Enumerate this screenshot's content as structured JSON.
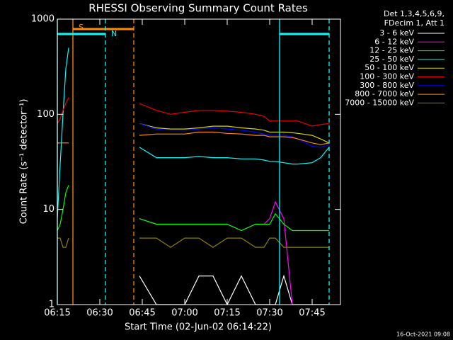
{
  "chart_data": {
    "type": "line",
    "title": "RHESSI Observing Summary Count Rates",
    "legend_header": [
      "Det 1,3,4,5,6,9,",
      "FDecim 1, Att 1"
    ],
    "xlabel": "Start Time (02-Jun-02 06:14:22)",
    "ylabel": "Count Rate (s⁻¹ detector⁻¹)",
    "footer": "16-Oct-2021 09:08",
    "log_y": true,
    "legend": "right",
    "xlim": [
      15,
      115
    ],
    "xticks": [
      {
        "value": 15,
        "label": "06:15"
      },
      {
        "value": 30,
        "label": "06:30"
      },
      {
        "value": 45,
        "label": "06:45"
      },
      {
        "value": 60,
        "label": "07:00"
      },
      {
        "value": 75,
        "label": "07:15"
      },
      {
        "value": 90,
        "label": "07:30"
      },
      {
        "value": 105,
        "label": "07:45"
      }
    ],
    "ylim": [
      1,
      1000
    ],
    "yticks": [
      1,
      10,
      100,
      1000
    ],
    "flags": [
      {
        "label": "S",
        "start": 20.5,
        "end": 42,
        "color": "#ff8c00"
      },
      {
        "label": "N",
        "start": 15,
        "end": 32,
        "color": "#00ffff"
      },
      {
        "start": 93.5,
        "end": 111,
        "color": "#00ffff"
      }
    ],
    "x": [
      15,
      16,
      17,
      18,
      19,
      20,
      44,
      50,
      55,
      60,
      65,
      70,
      75,
      80,
      85,
      88,
      90,
      92,
      95,
      98,
      100,
      105,
      108,
      111
    ],
    "series": [
      {
        "name": "3 - 6 keV",
        "color": "#ffffff",
        "values": [
          null,
          null,
          null,
          null,
          null,
          null,
          2,
          1,
          1,
          1,
          2,
          2,
          1,
          2,
          1,
          1,
          1,
          1,
          2,
          1,
          1,
          1,
          1,
          1
        ]
      },
      {
        "name": "6 - 12 keV",
        "color": "#ff00ff",
        "values": [
          null,
          null,
          null,
          null,
          null,
          null,
          8,
          7,
          7,
          7,
          7,
          7,
          7,
          6,
          7,
          7,
          8,
          12,
          8,
          1,
          null,
          null,
          null,
          null
        ]
      },
      {
        "name": "12 - 25 keV",
        "color": "#00ff00",
        "values": [
          6,
          7,
          10,
          15,
          18,
          null,
          8,
          7,
          7,
          7,
          7,
          7,
          7,
          6,
          7,
          7,
          7,
          9,
          7,
          6,
          6,
          6,
          6,
          6
        ]
      },
      {
        "name": "25 - 50 keV",
        "color": "#00ffff",
        "values": [
          8,
          30,
          100,
          300,
          500,
          null,
          45,
          35,
          35,
          35,
          36,
          35,
          35,
          34,
          34,
          33,
          32,
          32,
          31,
          30,
          30,
          31,
          35,
          45
        ]
      },
      {
        "name": "50 - 100 keV",
        "color": "#d4d400",
        "values": [
          null,
          null,
          null,
          null,
          null,
          null,
          80,
          72,
          70,
          70,
          72,
          75,
          75,
          72,
          70,
          68,
          65,
          65,
          65,
          64,
          63,
          60,
          55,
          50
        ]
      },
      {
        "name": "100 - 300 keV",
        "color": "#ee0000",
        "values": [
          80,
          90,
          110,
          130,
          150,
          null,
          130,
          110,
          100,
          105,
          110,
          110,
          108,
          105,
          100,
          95,
          85,
          85,
          85,
          85,
          85,
          75,
          78,
          80
        ]
      },
      {
        "name": "300 - 800 keV",
        "color": "#0000ff",
        "values": [
          null,
          null,
          null,
          null,
          null,
          null,
          80,
          70,
          68,
          68,
          70,
          72,
          70,
          68,
          65,
          62,
          60,
          60,
          60,
          58,
          55,
          46,
          45,
          48
        ]
      },
      {
        "name": "800 - 7000 keV",
        "color": "#ff8c00",
        "values": [
          50,
          50,
          50,
          50,
          50,
          null,
          60,
          62,
          62,
          62,
          65,
          65,
          63,
          62,
          60,
          60,
          58,
          58,
          58,
          57,
          55,
          50,
          48,
          50
        ]
      },
      {
        "name": "7000 - 15000 keV",
        "color": "#8b8000",
        "values": [
          5,
          5,
          4,
          4,
          5,
          null,
          5,
          5,
          4,
          5,
          5,
          4,
          5,
          5,
          4,
          4,
          5,
          5,
          4,
          4,
          4,
          4,
          4,
          4
        ]
      }
    ]
  }
}
